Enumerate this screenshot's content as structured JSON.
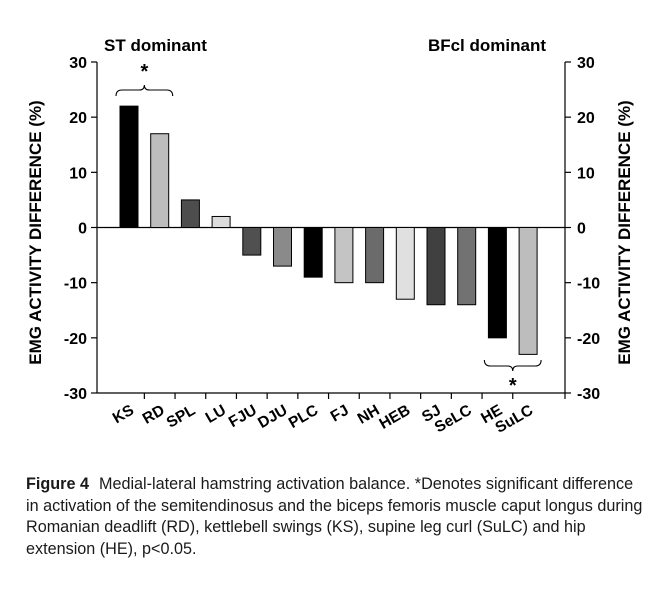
{
  "chart_data": {
    "type": "bar",
    "title": "",
    "xlabel": "",
    "ylabel": "EMG ACTIVITY DIFFERENCE (%)",
    "ylim": [
      -30,
      30
    ],
    "yticks": [
      -30,
      -20,
      -10,
      0,
      10,
      20,
      30
    ],
    "grid": false,
    "legend": "none",
    "left_annotation": "ST dominant",
    "right_annotation": "BFcl dominant",
    "significance_marker": "*",
    "significant_groups": [
      [
        "KS",
        "RD"
      ],
      [
        "HE",
        "SuLC"
      ]
    ],
    "categories": [
      "KS",
      "RD",
      "SPL",
      "LU",
      "FJU",
      "DJU",
      "PLC",
      "FJ",
      "NH",
      "HEB",
      "SJ",
      "SeLC",
      "HE",
      "SuLC"
    ],
    "values": [
      22,
      17,
      5,
      2,
      -5,
      -7,
      -9,
      -10,
      -10,
      -13,
      -14,
      -14,
      -20,
      -23
    ],
    "colors": [
      "#000000",
      "#bdbdbd",
      "#4d4d4d",
      "#dcdcdc",
      "#505050",
      "#8a8a8a",
      "#000000",
      "#c4c4c4",
      "#6b6b6b",
      "#e0e0e0",
      "#404040",
      "#727272",
      "#000000",
      "#bdbdbd"
    ]
  },
  "caption": {
    "label": "Figure 4",
    "text": "Medial-lateral hamstring activation balance. *Denotes significant difference in activation of the semitendinosus and the biceps femoris muscle caput longus during Romanian deadlift (RD), kettlebell swings (KS), supine leg curl (SuLC) and hip extension (HE), p<0.05."
  }
}
